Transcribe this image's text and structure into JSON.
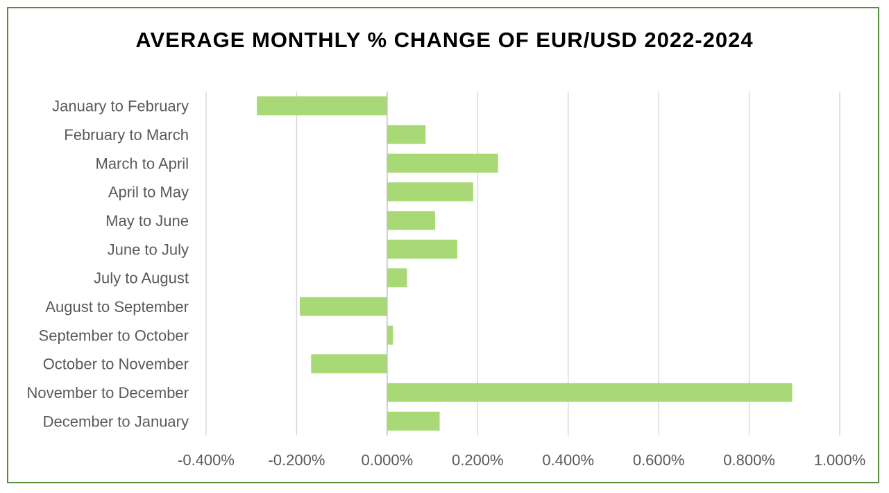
{
  "chart_data": {
    "type": "bar",
    "orientation": "horizontal",
    "title": "AVERAGE MONTHLY % CHANGE OF EUR/USD 2022-2024",
    "categories": [
      "January to February",
      "February to March",
      "March to April",
      "April to May",
      "May to June",
      "June to July",
      "July to August",
      "August to September",
      "September to October",
      "October to November",
      "November to December",
      "December to January"
    ],
    "series": [
      {
        "values": [
          -0.288,
          0.085,
          0.245,
          0.19,
          0.106,
          0.155,
          0.044,
          -0.193,
          0.013,
          -0.168,
          0.895,
          0.116
        ]
      }
    ],
    "xlim": [
      -0.4,
      1.0
    ],
    "xticks": [
      -0.4,
      -0.2,
      0.0,
      0.2,
      0.4,
      0.6,
      0.8,
      1.0
    ],
    "xtick_labels": [
      "-0.400%",
      "-0.200%",
      "0.000%",
      "0.200%",
      "0.400%",
      "0.600%",
      "0.800%",
      "1.000%"
    ],
    "value_unit": "%",
    "grid": "vertical",
    "legend": "none",
    "colors": {
      "bar": "#a9d977",
      "frame": "#5a8a3c",
      "grid": "#d9d9d9",
      "zero_line": "#bfbfbf",
      "text": "#595959"
    }
  }
}
